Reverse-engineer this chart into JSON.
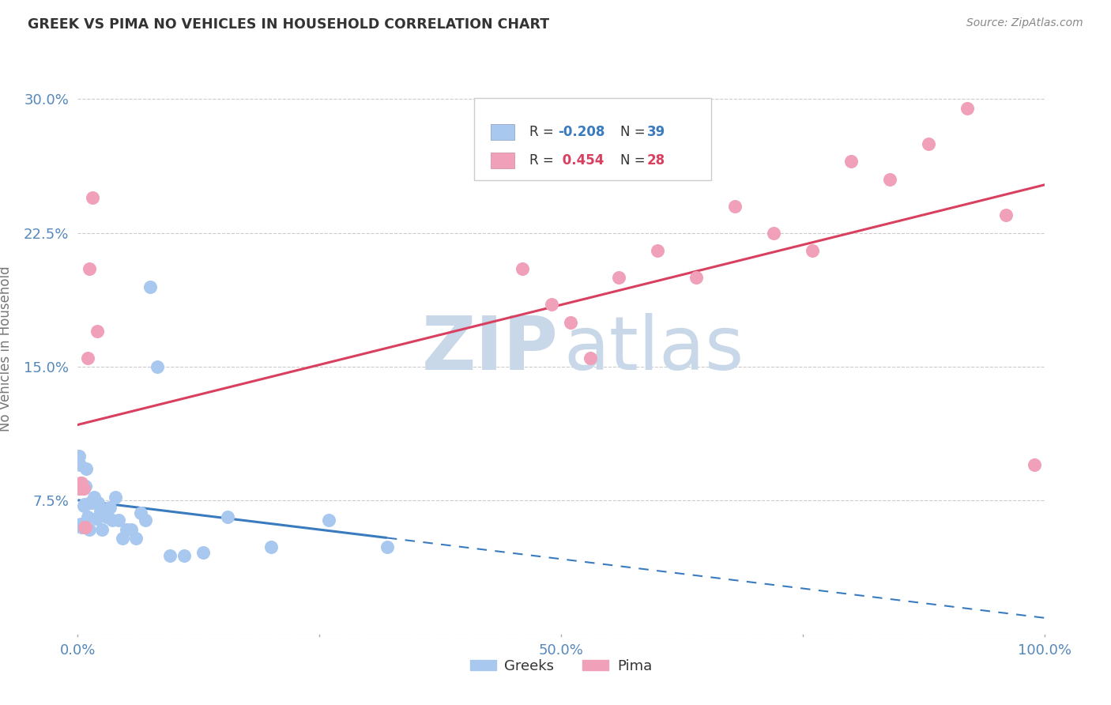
{
  "title": "GREEK VS PIMA NO VEHICLES IN HOUSEHOLD CORRELATION CHART",
  "source": "Source: ZipAtlas.com",
  "ylabel": "No Vehicles in Household",
  "greek_color": "#a8c8f0",
  "pima_color": "#f0a0b8",
  "greek_line_color": "#3a7bbf",
  "pima_line_color": "#d94060",
  "legend_blue_color": "#3a7bbf",
  "legend_pink_color": "#d94060",
  "watermark_zip_color": "#c8d8e8",
  "watermark_atlas_color": "#c8d8e8",
  "R_greek": -0.208,
  "N_greek": 39,
  "R_pima": 0.454,
  "N_pima": 28,
  "greeks_x": [
    0.001,
    0.002,
    0.003,
    0.004,
    0.005,
    0.006,
    0.007,
    0.008,
    0.009,
    0.01,
    0.012,
    0.013,
    0.015,
    0.017,
    0.019,
    0.021,
    0.023,
    0.025,
    0.028,
    0.03,
    0.033,
    0.036,
    0.039,
    0.042,
    0.046,
    0.05,
    0.055,
    0.06,
    0.065,
    0.07,
    0.075,
    0.082,
    0.095,
    0.11,
    0.13,
    0.155,
    0.2,
    0.26,
    0.32
  ],
  "greeks_y": [
    0.1,
    0.095,
    0.062,
    0.06,
    0.062,
    0.072,
    0.073,
    0.083,
    0.093,
    0.066,
    0.059,
    0.074,
    0.074,
    0.077,
    0.065,
    0.074,
    0.069,
    0.059,
    0.068,
    0.066,
    0.071,
    0.064,
    0.077,
    0.064,
    0.054,
    0.059,
    0.059,
    0.054,
    0.068,
    0.064,
    0.195,
    0.15,
    0.044,
    0.044,
    0.046,
    0.066,
    0.049,
    0.064,
    0.049
  ],
  "pima_x": [
    0.001,
    0.002,
    0.003,
    0.004,
    0.005,
    0.006,
    0.007,
    0.008,
    0.01,
    0.012,
    0.015,
    0.02,
    0.46,
    0.49,
    0.51,
    0.53,
    0.56,
    0.6,
    0.64,
    0.68,
    0.72,
    0.76,
    0.8,
    0.84,
    0.88,
    0.92,
    0.96,
    0.99
  ],
  "pima_y": [
    0.082,
    0.082,
    0.085,
    0.085,
    0.082,
    0.082,
    0.06,
    0.06,
    0.155,
    0.205,
    0.245,
    0.17,
    0.205,
    0.185,
    0.175,
    0.155,
    0.2,
    0.215,
    0.2,
    0.24,
    0.225,
    0.215,
    0.265,
    0.255,
    0.275,
    0.295,
    0.235,
    0.095
  ],
  "xlim": [
    0.0,
    1.0
  ],
  "ylim": [
    0.0,
    0.32
  ],
  "xticks": [
    0.0,
    0.25,
    0.5,
    0.75,
    1.0
  ],
  "xticklabels": [
    "0.0%",
    "",
    "50.0%",
    "",
    "100.0%"
  ],
  "yticks": [
    0.0,
    0.075,
    0.15,
    0.225,
    0.3
  ],
  "yticklabels": [
    "",
    "7.5%",
    "15.0%",
    "22.5%",
    "30.0%"
  ]
}
